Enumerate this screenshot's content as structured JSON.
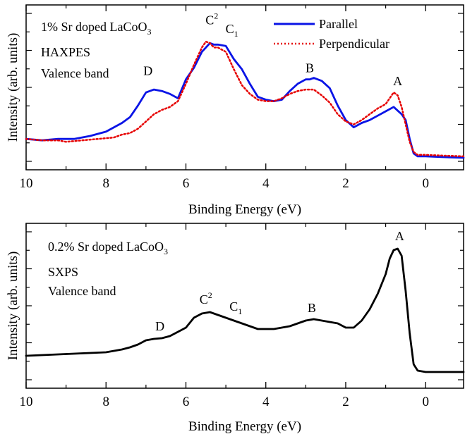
{
  "chart_data": [
    {
      "type": "line",
      "panel": "top",
      "annotations": {
        "sample_label": "1% Sr doped LaCoO",
        "sample_subscript": "3",
        "technique": "HAXPES",
        "region": "Valence band"
      },
      "xlabel": "Binding Energy (eV)",
      "ylabel": "Intensity (arb. units)",
      "xlim": [
        10,
        -0.95
      ],
      "x_reversed": true,
      "ylim": [
        0,
        1
      ],
      "x_ticks": [
        10,
        8,
        6,
        4,
        2,
        0
      ],
      "grid": false,
      "legend_position": "top-right",
      "series": [
        {
          "name": "Parallel",
          "color": "#0a14e6",
          "style": "solid",
          "points": [
            [
              10,
              0.14
            ],
            [
              9.6,
              0.13
            ],
            [
              9.2,
              0.14
            ],
            [
              8.8,
              0.14
            ],
            [
              8.4,
              0.16
            ],
            [
              8.0,
              0.19
            ],
            [
              7.6,
              0.25
            ],
            [
              7.4,
              0.29
            ],
            [
              7.2,
              0.37
            ],
            [
              7.0,
              0.46
            ],
            [
              6.8,
              0.48
            ],
            [
              6.6,
              0.47
            ],
            [
              6.4,
              0.45
            ],
            [
              6.2,
              0.42
            ],
            [
              6.0,
              0.55
            ],
            [
              5.8,
              0.63
            ],
            [
              5.6,
              0.74
            ],
            [
              5.5,
              0.77
            ],
            [
              5.4,
              0.8
            ],
            [
              5.3,
              0.79
            ],
            [
              5.2,
              0.79
            ],
            [
              5.0,
              0.78
            ],
            [
              4.8,
              0.69
            ],
            [
              4.6,
              0.62
            ],
            [
              4.4,
              0.52
            ],
            [
              4.2,
              0.43
            ],
            [
              4.0,
              0.41
            ],
            [
              3.8,
              0.4
            ],
            [
              3.6,
              0.41
            ],
            [
              3.4,
              0.47
            ],
            [
              3.2,
              0.52
            ],
            [
              3.0,
              0.55
            ],
            [
              2.9,
              0.55
            ],
            [
              2.8,
              0.56
            ],
            [
              2.7,
              0.55
            ],
            [
              2.6,
              0.54
            ],
            [
              2.4,
              0.49
            ],
            [
              2.2,
              0.37
            ],
            [
              2.0,
              0.27
            ],
            [
              1.8,
              0.22
            ],
            [
              1.6,
              0.25
            ],
            [
              1.4,
              0.27
            ],
            [
              1.2,
              0.3
            ],
            [
              1.0,
              0.33
            ],
            [
              0.8,
              0.36
            ],
            [
              0.6,
              0.31
            ],
            [
              0.5,
              0.27
            ],
            [
              0.4,
              0.14
            ],
            [
              0.3,
              0.04
            ],
            [
              0.2,
              0.02
            ],
            [
              0.0,
              0.02
            ],
            [
              -0.4,
              0.015
            ],
            [
              -0.95,
              0.01
            ]
          ]
        },
        {
          "name": "Perpendicular",
          "color": "#e60000",
          "style": "dotted",
          "points": [
            [
              10,
              0.14
            ],
            [
              9.6,
              0.13
            ],
            [
              9.2,
              0.13
            ],
            [
              9.0,
              0.12
            ],
            [
              8.6,
              0.13
            ],
            [
              8.2,
              0.14
            ],
            [
              7.8,
              0.15
            ],
            [
              7.6,
              0.17
            ],
            [
              7.4,
              0.18
            ],
            [
              7.2,
              0.21
            ],
            [
              7.0,
              0.26
            ],
            [
              6.8,
              0.31
            ],
            [
              6.6,
              0.34
            ],
            [
              6.4,
              0.36
            ],
            [
              6.2,
              0.4
            ],
            [
              6.0,
              0.52
            ],
            [
              5.8,
              0.65
            ],
            [
              5.6,
              0.77
            ],
            [
              5.5,
              0.81
            ],
            [
              5.4,
              0.8
            ],
            [
              5.3,
              0.77
            ],
            [
              5.2,
              0.77
            ],
            [
              5.0,
              0.74
            ],
            [
              4.8,
              0.62
            ],
            [
              4.6,
              0.51
            ],
            [
              4.4,
              0.45
            ],
            [
              4.2,
              0.41
            ],
            [
              4.0,
              0.4
            ],
            [
              3.8,
              0.4
            ],
            [
              3.6,
              0.42
            ],
            [
              3.4,
              0.45
            ],
            [
              3.2,
              0.47
            ],
            [
              3.0,
              0.48
            ],
            [
              2.8,
              0.48
            ],
            [
              2.6,
              0.44
            ],
            [
              2.4,
              0.39
            ],
            [
              2.2,
              0.31
            ],
            [
              2.0,
              0.26
            ],
            [
              1.8,
              0.24
            ],
            [
              1.6,
              0.27
            ],
            [
              1.4,
              0.31
            ],
            [
              1.2,
              0.35
            ],
            [
              1.0,
              0.38
            ],
            [
              0.8,
              0.46
            ],
            [
              0.7,
              0.44
            ],
            [
              0.6,
              0.36
            ],
            [
              0.5,
              0.24
            ],
            [
              0.4,
              0.12
            ],
            [
              0.3,
              0.05
            ],
            [
              0.2,
              0.03
            ],
            [
              0.0,
              0.03
            ],
            [
              -0.4,
              0.025
            ],
            [
              -0.95,
              0.02
            ]
          ]
        }
      ],
      "peak_labels": [
        {
          "text": "D",
          "x": 6.95,
          "y": 0.58
        },
        {
          "text": "C",
          "sub": "2",
          "x": 5.35,
          "y": 0.93
        },
        {
          "text": "C",
          "sub": "1",
          "x": 4.85,
          "y": 0.87
        },
        {
          "text": "B",
          "x": 2.9,
          "y": 0.6
        },
        {
          "text": "A",
          "x": 0.7,
          "y": 0.51
        }
      ]
    },
    {
      "type": "line",
      "panel": "bottom",
      "annotations": {
        "sample_label": "0.2% Sr doped LaCoO",
        "sample_subscript": "3",
        "technique": "SXPS",
        "region": "Valence band"
      },
      "xlabel": "Binding Energy (eV)",
      "ylabel": "Intensity (arb. units)",
      "xlim": [
        10,
        -0.95
      ],
      "x_reversed": true,
      "ylim": [
        0,
        1
      ],
      "x_ticks": [
        10,
        8,
        6,
        4,
        2,
        0
      ],
      "grid": false,
      "series": [
        {
          "name": "",
          "color": "#000000",
          "style": "solid",
          "points": [
            [
              10,
              0.14
            ],
            [
              9.6,
              0.145
            ],
            [
              9.2,
              0.15
            ],
            [
              8.8,
              0.155
            ],
            [
              8.4,
              0.16
            ],
            [
              8.0,
              0.165
            ],
            [
              7.6,
              0.185
            ],
            [
              7.4,
              0.2
            ],
            [
              7.2,
              0.22
            ],
            [
              7.0,
              0.25
            ],
            [
              6.8,
              0.26
            ],
            [
              6.6,
              0.265
            ],
            [
              6.4,
              0.28
            ],
            [
              6.2,
              0.31
            ],
            [
              6.0,
              0.34
            ],
            [
              5.8,
              0.41
            ],
            [
              5.6,
              0.44
            ],
            [
              5.4,
              0.45
            ],
            [
              5.2,
              0.43
            ],
            [
              5.0,
              0.41
            ],
            [
              4.8,
              0.39
            ],
            [
              4.6,
              0.37
            ],
            [
              4.4,
              0.35
            ],
            [
              4.2,
              0.33
            ],
            [
              4.0,
              0.33
            ],
            [
              3.8,
              0.33
            ],
            [
              3.6,
              0.34
            ],
            [
              3.4,
              0.35
            ],
            [
              3.2,
              0.37
            ],
            [
              3.0,
              0.39
            ],
            [
              2.8,
              0.4
            ],
            [
              2.6,
              0.39
            ],
            [
              2.4,
              0.38
            ],
            [
              2.2,
              0.37
            ],
            [
              2.0,
              0.34
            ],
            [
              1.8,
              0.34
            ],
            [
              1.6,
              0.39
            ],
            [
              1.4,
              0.47
            ],
            [
              1.2,
              0.58
            ],
            [
              1.0,
              0.72
            ],
            [
              0.9,
              0.83
            ],
            [
              0.8,
              0.89
            ],
            [
              0.7,
              0.9
            ],
            [
              0.6,
              0.85
            ],
            [
              0.5,
              0.6
            ],
            [
              0.4,
              0.3
            ],
            [
              0.3,
              0.08
            ],
            [
              0.2,
              0.035
            ],
            [
              0.0,
              0.025
            ],
            [
              -0.4,
              0.025
            ],
            [
              -0.95,
              0.025
            ]
          ]
        }
      ],
      "peak_labels": [
        {
          "text": "D",
          "x": 6.65,
          "y": 0.32
        },
        {
          "text": "C",
          "sub": "2",
          "x": 5.5,
          "y": 0.51
        },
        {
          "text": "C",
          "sub": "1",
          "x": 4.75,
          "y": 0.46
        },
        {
          "text": "B",
          "x": 2.85,
          "y": 0.45
        },
        {
          "text": "A",
          "x": 0.65,
          "y": 0.96
        }
      ]
    }
  ]
}
